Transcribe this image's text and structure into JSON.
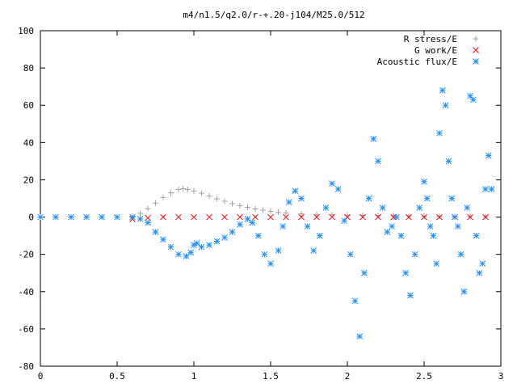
{
  "chart_data": {
    "type": "scatter",
    "title": "m4/n1.5/q2.0/r-+.20-j104/M25.0/512",
    "xlabel": "",
    "ylabel": "",
    "xlim": [
      0,
      3
    ],
    "ylim": [
      -80,
      100
    ],
    "xticks": [
      "0",
      "0.5",
      "1",
      "1.5",
      "2",
      "2.5",
      "3"
    ],
    "xtick_values": [
      0,
      0.5,
      1,
      1.5,
      2,
      2.5,
      3
    ],
    "yticks": [
      "-80",
      "-60",
      "-40",
      "-20",
      "0",
      "20",
      "40",
      "60",
      "80",
      "100"
    ],
    "ytick_values": [
      -80,
      -60,
      -40,
      -20,
      0,
      20,
      40,
      60,
      80,
      100
    ],
    "grid": false,
    "legend_position": "top-right",
    "series": [
      {
        "name": "R stress/E",
        "marker": "plus",
        "color": "#a0a0a0",
        "x": [
          0.6,
          0.65,
          0.7,
          0.75,
          0.8,
          0.85,
          0.9,
          0.93,
          0.96,
          1.0,
          1.05,
          1.1,
          1.15,
          1.2,
          1.25,
          1.3,
          1.35,
          1.4,
          1.45,
          1.5,
          1.55,
          1.6,
          1.7,
          1.8,
          1.9,
          2.0,
          2.1,
          2.2,
          2.3,
          2.4,
          2.5,
          2.6,
          2.7,
          2.8,
          2.9
        ],
        "y": [
          0.5,
          2,
          4.5,
          7.5,
          10.5,
          13,
          14.8,
          15.2,
          14.8,
          14,
          12.8,
          11.3,
          9.8,
          8.5,
          7.2,
          6.1,
          5.2,
          4.4,
          3.7,
          3.1,
          2.6,
          2.2,
          1.7,
          1.4,
          1.2,
          1.0,
          0.9,
          0.8,
          0.7,
          0.6,
          0.5,
          0.4,
          0.3,
          0.3,
          0.2
        ]
      },
      {
        "name": "G work/E",
        "marker": "cross",
        "color": "#ff0000",
        "x": [
          0.6,
          0.7,
          0.8,
          0.9,
          1.0,
          1.1,
          1.2,
          1.3,
          1.4,
          1.5,
          1.6,
          1.7,
          1.8,
          1.9,
          2.0,
          2.1,
          2.2,
          2.3,
          2.4,
          2.5,
          2.6,
          2.7,
          2.8,
          2.9
        ],
        "y": [
          -1,
          -0.5,
          0,
          0,
          0,
          0,
          0,
          0,
          0,
          0,
          0,
          0,
          0,
          0,
          0,
          0,
          0,
          0,
          0,
          0,
          0,
          0,
          0,
          0
        ]
      },
      {
        "name": "Acoustic flux/E",
        "marker": "star",
        "color": "#1e90ff",
        "x": [
          0.0,
          0.1,
          0.2,
          0.3,
          0.4,
          0.5,
          0.6,
          0.65,
          0.7,
          0.75,
          0.8,
          0.85,
          0.9,
          0.95,
          0.98,
          1.0,
          1.02,
          1.05,
          1.1,
          1.15,
          1.2,
          1.25,
          1.3,
          1.35,
          1.38,
          1.42,
          1.46,
          1.5,
          1.55,
          1.58,
          1.62,
          1.66,
          1.7,
          1.74,
          1.78,
          1.82,
          1.86,
          1.9,
          1.94,
          1.98,
          2.02,
          2.05,
          2.08,
          2.11,
          2.14,
          2.17,
          2.2,
          2.23,
          2.26,
          2.29,
          2.32,
          2.35,
          2.38,
          2.41,
          2.44,
          2.47,
          2.5,
          2.52,
          2.54,
          2.56,
          2.58,
          2.6,
          2.62,
          2.64,
          2.66,
          2.68,
          2.7,
          2.72,
          2.74,
          2.76,
          2.78,
          2.8,
          2.82,
          2.84,
          2.86,
          2.88,
          2.9,
          2.92,
          2.94
        ],
        "y": [
          0,
          0,
          0,
          0,
          0,
          0,
          0,
          -1,
          -3,
          -8,
          -12,
          -16,
          -20,
          -21,
          -19,
          -15,
          -14,
          -16,
          -15,
          -13,
          -11,
          -8,
          -4,
          -1,
          -3,
          -10,
          -20,
          -25,
          -18,
          -5,
          8,
          14,
          10,
          -5,
          -18,
          -10,
          5,
          18,
          15,
          -2,
          -20,
          -45,
          -64,
          -30,
          10,
          42,
          30,
          5,
          -8,
          -5,
          0,
          -10,
          -30,
          -42,
          -20,
          5,
          19,
          10,
          -5,
          -10,
          -25,
          45,
          68,
          60,
          30,
          10,
          0,
          -5,
          -20,
          -40,
          5,
          65,
          63,
          -10,
          -30,
          -25,
          15,
          33,
          15
        ]
      }
    ]
  }
}
